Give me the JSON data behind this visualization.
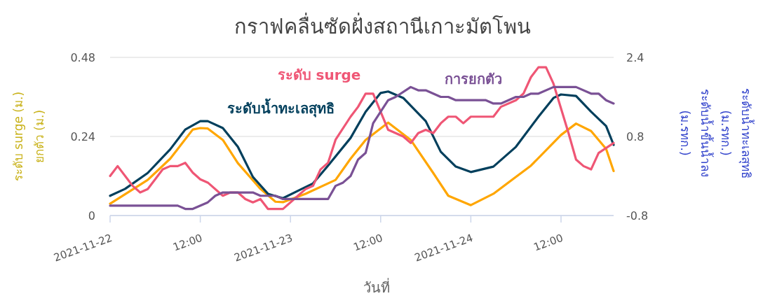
{
  "chart_data": {
    "type": "line",
    "title": "กราฟคลื่นซัดฝั่งสถานีเกาะมัตโพน",
    "xlabel": "วันที่",
    "ylabel": "ระดับ surge (ม.)\nยกตัว (ม.)",
    "y2label": "ระดับน้ำทะเลสุทธิ (ม.รทก.)\nระดับน้ำขึ้นน้ำลง (ม.รทก.)",
    "xlim": [
      "2021-11-22T00:00",
      "2021-11-24T19:00"
    ],
    "xticks": [
      {
        "value": "2021-11-22T00:00",
        "label": "2021-11-22"
      },
      {
        "value": "2021-11-22T12:00",
        "label": "12:00"
      },
      {
        "value": "2021-11-23T00:00",
        "label": "2021-11-23"
      },
      {
        "value": "2021-11-23T12:00",
        "label": "12:00"
      },
      {
        "value": "2021-11-24T00:00",
        "label": "2021-11-24"
      },
      {
        "value": "2021-11-24T12:00",
        "label": "12:00"
      }
    ],
    "ylim": [
      0,
      0.48
    ],
    "yticks": [
      0,
      0.24,
      0.48
    ],
    "y2lim": [
      -0.8,
      2.4
    ],
    "y2ticks": [
      -0.8,
      0.8,
      2.4
    ],
    "grid": "y",
    "series": [
      {
        "color": "#ffa600",
        "axis": "y2",
        "x": [
          "2021-11-22T00:00",
          "2021-11-22T05:00",
          "2021-11-22T08:00",
          "2021-11-22T11:00",
          "2021-11-22T12:00",
          "2021-11-22T13:00",
          "2021-11-22T15:00",
          "2021-11-22T17:00",
          "2021-11-22T20:00",
          "2021-11-22T22:00",
          "2021-11-22T23:00",
          "2021-11-23T02:00",
          "2021-11-23T06:00",
          "2021-11-23T08:00",
          "2021-11-23T10:00",
          "2021-11-23T13:00",
          "2021-11-23T16:00",
          "2021-11-23T19:00",
          "2021-11-23T21:00",
          "2021-11-24T00:00",
          "2021-11-24T03:00",
          "2021-11-24T08:00",
          "2021-11-24T12:00",
          "2021-11-24T14:00",
          "2021-11-24T16:00",
          "2021-11-24T18:00",
          "2021-11-24T19:00"
        ],
        "values": [
          -0.56,
          -0.08,
          0.35,
          0.94,
          0.97,
          0.96,
          0.73,
          0.26,
          -0.26,
          -0.52,
          -0.53,
          -0.36,
          -0.08,
          0.35,
          0.73,
          1.08,
          0.73,
          0.06,
          -0.4,
          -0.59,
          -0.36,
          0.21,
          0.83,
          1.06,
          0.91,
          0.55,
          0.1
        ]
      },
      {
        "name": "ระดับน้ำทะเลสุทธิ",
        "color": "#003f5c",
        "axis": "y2",
        "x": [
          "2021-11-22T00:00",
          "2021-11-22T02:00",
          "2021-11-22T05:00",
          "2021-11-22T08:00",
          "2021-11-22T10:00",
          "2021-11-22T12:00",
          "2021-11-22T13:00",
          "2021-11-22T15:00",
          "2021-11-22T17:00",
          "2021-11-22T19:00",
          "2021-11-22T21:00",
          "2021-11-22T23:00",
          "2021-11-23T01:00",
          "2021-11-23T03:00",
          "2021-11-23T05:00",
          "2021-11-23T08:00",
          "2021-11-23T10:00",
          "2021-11-23T12:00",
          "2021-11-23T13:00",
          "2021-11-23T15:00",
          "2021-11-23T18:00",
          "2021-11-23T20:00",
          "2021-11-23T22:00",
          "2021-11-24T00:00",
          "2021-11-24T03:00",
          "2021-11-24T06:00",
          "2021-11-24T09:00",
          "2021-11-24T11:00",
          "2021-11-24T12:00",
          "2021-11-24T14:00",
          "2021-11-24T16:00",
          "2021-11-24T18:00",
          "2021-11-24T19:00"
        ],
        "values": [
          -0.4,
          -0.26,
          0.06,
          0.54,
          0.94,
          1.11,
          1.11,
          0.97,
          0.59,
          -0.02,
          -0.36,
          -0.45,
          -0.3,
          -0.15,
          0.21,
          0.77,
          1.3,
          1.68,
          1.71,
          1.58,
          1.11,
          0.49,
          0.19,
          0.08,
          0.19,
          0.59,
          1.2,
          1.58,
          1.65,
          1.62,
          1.3,
          1.01,
          0.63
        ]
      },
      {
        "name": "ระดับ surge",
        "color": "#ef5675",
        "x": [
          "2021-11-22T00:00",
          "2021-11-22T01:00",
          "2021-11-22T03:00",
          "2021-11-22T04:00",
          "2021-11-22T05:00",
          "2021-11-22T07:00",
          "2021-11-22T08:00",
          "2021-11-22T09:00",
          "2021-11-22T10:00",
          "2021-11-22T11:00",
          "2021-11-22T12:00",
          "2021-11-22T13:00",
          "2021-11-22T15:00",
          "2021-11-22T16:00",
          "2021-11-22T17:00",
          "2021-11-22T18:00",
          "2021-11-22T19:00",
          "2021-11-22T20:00",
          "2021-11-22T21:00",
          "2021-11-22T23:00",
          "2021-11-23T01:00",
          "2021-11-23T02:00",
          "2021-11-23T03:00",
          "2021-11-23T04:00",
          "2021-11-23T05:00",
          "2021-11-23T06:00",
          "2021-11-23T08:00",
          "2021-11-23T09:00",
          "2021-11-23T10:00",
          "2021-11-23T11:00",
          "2021-11-23T13:00",
          "2021-11-23T15:00",
          "2021-11-23T16:00",
          "2021-11-23T17:00",
          "2021-11-23T18:00",
          "2021-11-23T19:00",
          "2021-11-23T20:00",
          "2021-11-23T21:00",
          "2021-11-23T22:00",
          "2021-11-23T23:00",
          "2021-11-24T00:00",
          "2021-11-24T03:00",
          "2021-11-24T04:00",
          "2021-11-24T06:00",
          "2021-11-24T07:00",
          "2021-11-24T08:00",
          "2021-11-24T09:00",
          "2021-11-24T10:00",
          "2021-11-24T11:00",
          "2021-11-24T13:00",
          "2021-11-24T14:00",
          "2021-11-24T15:00",
          "2021-11-24T16:00",
          "2021-11-24T17:00",
          "2021-11-24T19:00"
        ],
        "values": [
          0.12,
          0.15,
          0.09,
          0.07,
          0.08,
          0.14,
          0.15,
          0.15,
          0.16,
          0.13,
          0.11,
          0.1,
          0.06,
          0.07,
          0.07,
          0.05,
          0.04,
          0.05,
          0.02,
          0.02,
          0.06,
          0.08,
          0.09,
          0.14,
          0.16,
          0.23,
          0.3,
          0.33,
          0.37,
          0.37,
          0.26,
          0.24,
          0.22,
          0.25,
          0.26,
          0.25,
          0.28,
          0.3,
          0.3,
          0.28,
          0.3,
          0.3,
          0.33,
          0.35,
          0.37,
          0.42,
          0.45,
          0.45,
          0.4,
          0.25,
          0.17,
          0.15,
          0.14,
          0.19,
          0.22
        ]
      },
      {
        "name": "การยกตัว",
        "color": "#7a5195",
        "x": [
          "2021-11-22T00:00",
          "2021-11-22T09:00",
          "2021-11-22T10:00",
          "2021-11-22T11:00",
          "2021-11-22T13:00",
          "2021-11-22T14:00",
          "2021-11-22T15:00",
          "2021-11-22T19:00",
          "2021-11-22T20:00",
          "2021-11-22T22:00",
          "2021-11-22T23:00",
          "2021-11-23T05:00",
          "2021-11-23T06:00",
          "2021-11-23T07:00",
          "2021-11-23T08:00",
          "2021-11-23T09:00",
          "2021-11-23T10:00",
          "2021-11-23T11:00",
          "2021-11-23T13:00",
          "2021-11-23T14:00",
          "2021-11-23T16:00",
          "2021-11-23T17:00",
          "2021-11-23T18:00",
          "2021-11-23T20:00",
          "2021-11-23T21:00",
          "2021-11-23T22:00",
          "2021-11-24T02:00",
          "2021-11-24T03:00",
          "2021-11-24T04:00",
          "2021-11-24T06:00",
          "2021-11-24T07:00",
          "2021-11-24T08:00",
          "2021-11-24T09:00",
          "2021-11-24T11:00",
          "2021-11-24T14:00",
          "2021-11-24T16:00",
          "2021-11-24T17:00",
          "2021-11-24T18:00",
          "2021-11-24T19:00"
        ],
        "values": [
          0.03,
          0.03,
          0.02,
          0.02,
          0.04,
          0.06,
          0.07,
          0.07,
          0.06,
          0.06,
          0.05,
          0.05,
          0.09,
          0.1,
          0.12,
          0.17,
          0.19,
          0.28,
          0.35,
          0.36,
          0.39,
          0.38,
          0.38,
          0.36,
          0.36,
          0.35,
          0.35,
          0.34,
          0.34,
          0.36,
          0.36,
          0.37,
          0.37,
          0.39,
          0.39,
          0.37,
          0.37,
          0.35,
          0.34
        ]
      }
    ]
  }
}
